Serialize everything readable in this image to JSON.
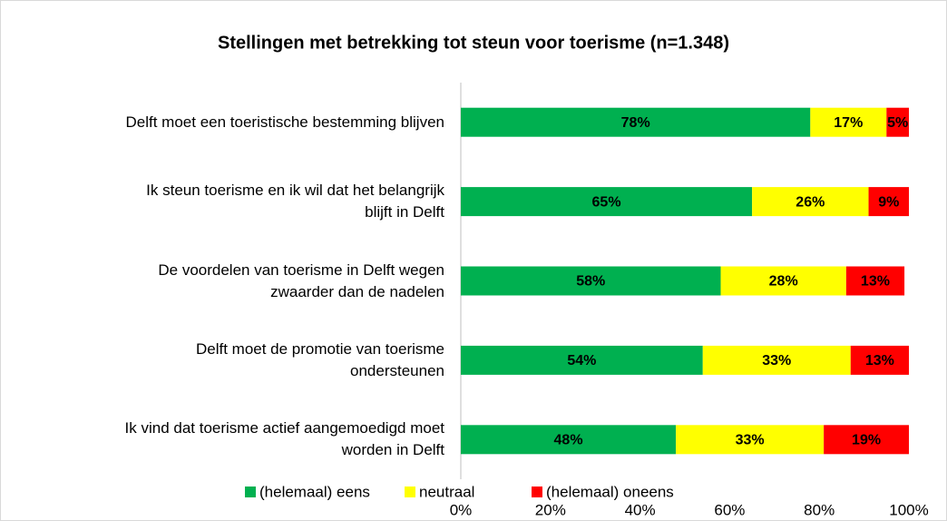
{
  "chart_data": {
    "type": "stacked_barh",
    "title": "Stellingen met betrekking tot steun voor toerisme (n=1.348)",
    "categories": [
      "Delft moet een toeristische bestemming blijven",
      "Ik steun toerisme en ik wil dat het belangrijk\nblijft in Delft",
      "De voordelen van toerisme in Delft wegen\nzwaarder dan de nadelen",
      "Delft moet de promotie van toerisme\nondersteunen",
      "Ik vind dat toerisme actief aangemoedigd moet\nworden in Delft"
    ],
    "series": [
      {
        "name": "(helemaal) eens",
        "color": "#00b050",
        "values": [
          78,
          65,
          58,
          54,
          48
        ],
        "value_labels": [
          "78%",
          "65%",
          "58%",
          "54%",
          "48%"
        ]
      },
      {
        "name": "neutraal",
        "color": "#ffff00",
        "values": [
          17,
          26,
          28,
          33,
          33
        ],
        "value_labels": [
          "17%",
          "26%",
          "28%",
          "33%",
          "33%"
        ]
      },
      {
        "name": "(helemaal) oneens",
        "color": "#ff0000",
        "values": [
          5,
          9,
          13,
          13,
          19
        ],
        "value_labels": [
          "5%",
          "9%",
          "13%",
          "13%",
          "19%"
        ]
      }
    ],
    "xlim": [
      0,
      100
    ],
    "xticks": [
      {
        "value": 0,
        "label": "0%"
      },
      {
        "value": 20,
        "label": "20%"
      },
      {
        "value": 40,
        "label": "40%"
      },
      {
        "value": 60,
        "label": "60%"
      },
      {
        "value": 80,
        "label": "80%"
      },
      {
        "value": 100,
        "label": "100%"
      }
    ],
    "legend": "bottom"
  }
}
